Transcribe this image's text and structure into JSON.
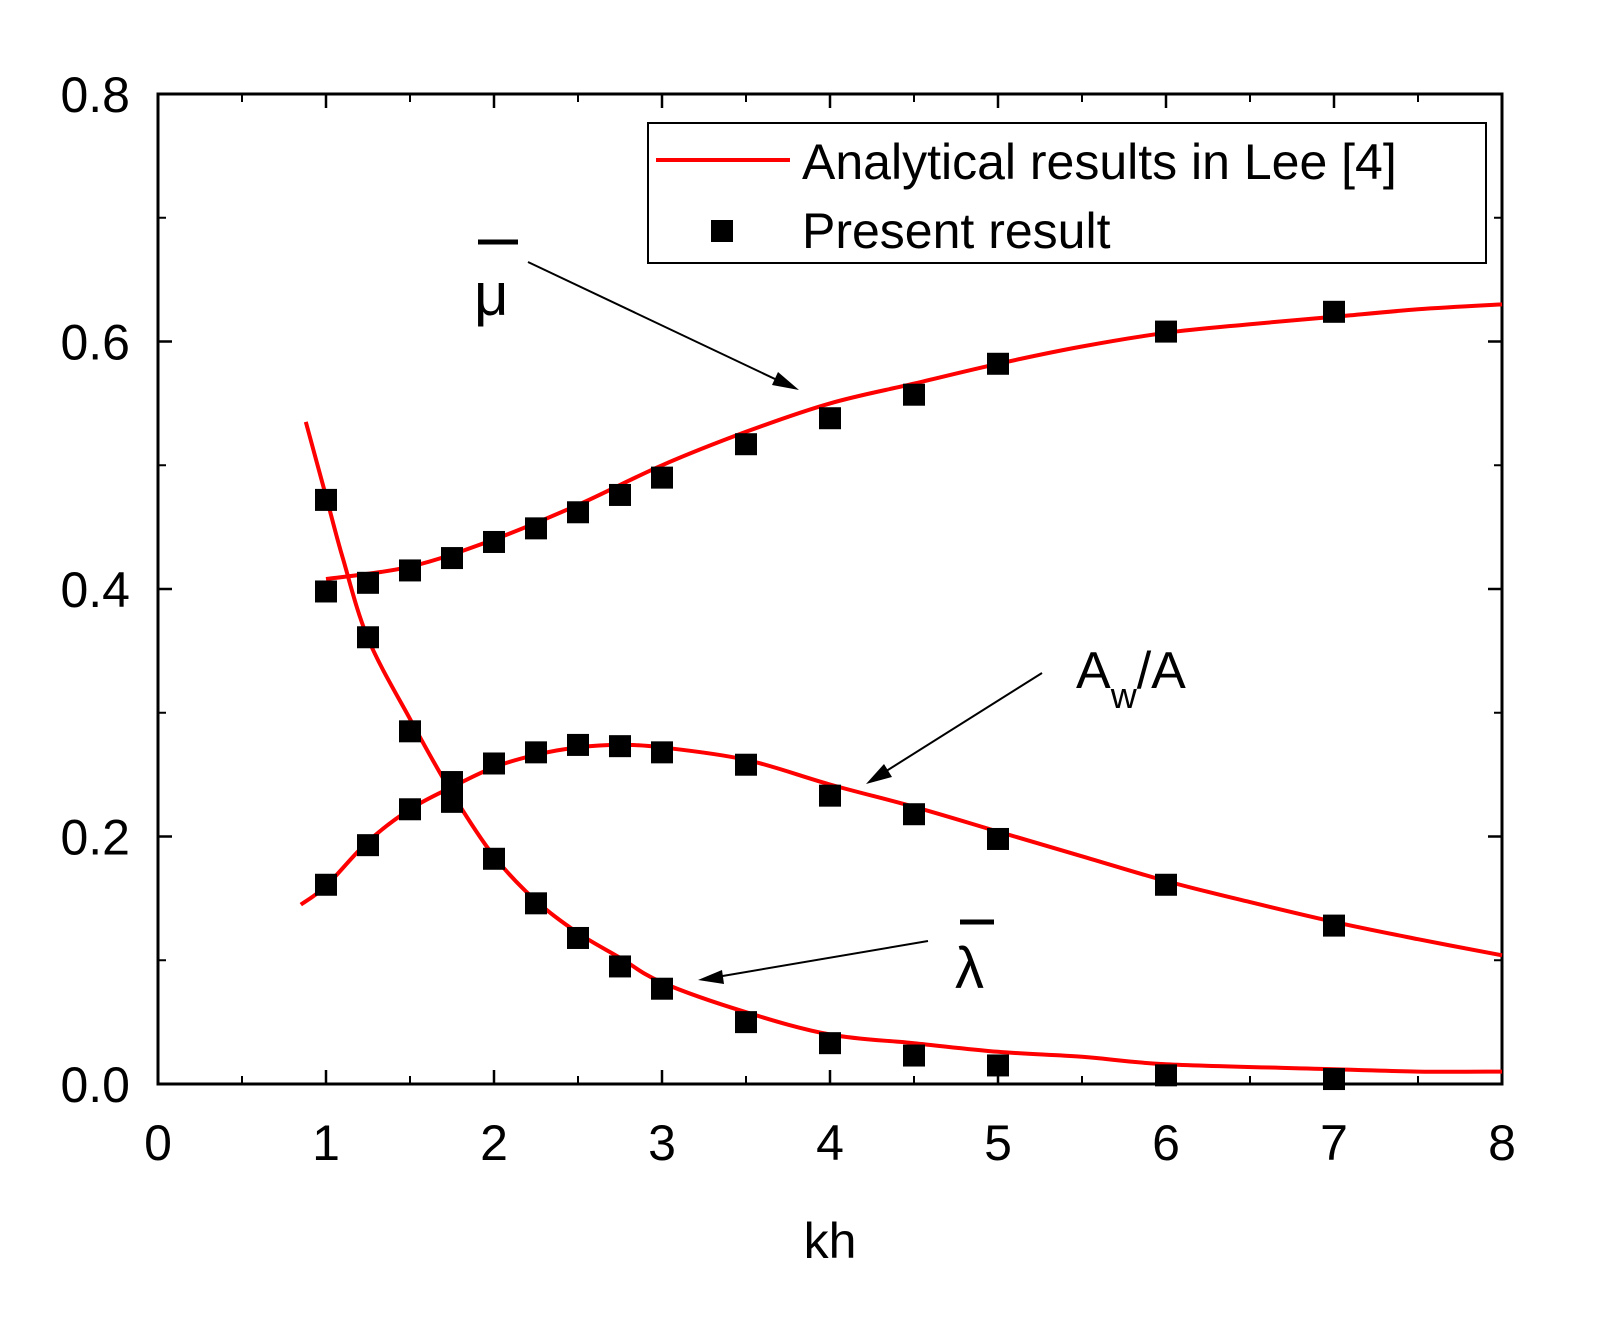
{
  "chart_data": {
    "type": "line",
    "xlabel": "kh",
    "ylabel": "",
    "xlim": [
      0,
      8
    ],
    "ylim": [
      0,
      0.8
    ],
    "x_ticks": [
      "0",
      "1",
      "2",
      "3",
      "4",
      "5",
      "6",
      "7",
      "8"
    ],
    "y_ticks": [
      "0.0",
      "0.2",
      "0.4",
      "0.6",
      "0.8"
    ],
    "legend": {
      "position": "top-right",
      "entries": [
        {
          "label": "Analytical results in Lee [4]",
          "marker": "line",
          "color": "#ff0000"
        },
        {
          "label": "Present result",
          "marker": "square",
          "color": "#000000"
        }
      ]
    },
    "annotations": {
      "mu": {
        "text": "μ",
        "overbar": true
      },
      "aw": {
        "main": "A",
        "sub": "w",
        "rest": "/A"
      },
      "lambda": {
        "text": "λ",
        "overbar": true
      }
    },
    "series": [
      {
        "key": "mu",
        "analytical": {
          "x": [
            1.0,
            1.5,
            2.0,
            2.5,
            3.0,
            3.5,
            4.0,
            4.5,
            5.0,
            5.5,
            6.0,
            6.5,
            7.0,
            7.5,
            8.0
          ],
          "y": [
            0.408,
            0.418,
            0.44,
            0.468,
            0.5,
            0.527,
            0.55,
            0.566,
            0.582,
            0.596,
            0.607,
            0.614,
            0.62,
            0.626,
            0.63
          ]
        },
        "present": {
          "x": [
            1.0,
            1.25,
            1.5,
            1.75,
            2.0,
            2.25,
            2.5,
            2.75,
            3.0,
            3.5,
            4.0,
            4.5,
            5.0,
            6.0,
            7.0
          ],
          "y": [
            0.398,
            0.405,
            0.415,
            0.425,
            0.438,
            0.449,
            0.462,
            0.476,
            0.49,
            0.517,
            0.538,
            0.557,
            0.582,
            0.608,
            0.624
          ]
        }
      },
      {
        "key": "aw",
        "analytical": {
          "x": [
            0.85,
            1.0,
            1.25,
            1.5,
            1.75,
            2.0,
            2.25,
            2.5,
            2.75,
            3.0,
            3.5,
            4.0,
            4.5,
            5.0,
            5.5,
            6.0,
            6.5,
            7.0,
            7.5,
            8.0
          ],
          "y": [
            0.145,
            0.16,
            0.196,
            0.222,
            0.24,
            0.256,
            0.266,
            0.272,
            0.274,
            0.272,
            0.262,
            0.242,
            0.224,
            0.204,
            0.184,
            0.164,
            0.147,
            0.131,
            0.117,
            0.104
          ]
        },
        "present": {
          "x": [
            1.0,
            1.25,
            1.5,
            1.75,
            2.0,
            2.25,
            2.5,
            2.75,
            3.0,
            3.5,
            4.0,
            4.5,
            5.0,
            6.0,
            7.0
          ],
          "y": [
            0.161,
            0.193,
            0.222,
            0.244,
            0.259,
            0.268,
            0.274,
            0.273,
            0.268,
            0.258,
            0.233,
            0.218,
            0.198,
            0.161,
            0.128
          ]
        }
      },
      {
        "key": "lambda",
        "analytical": {
          "x": [
            0.88,
            1.0,
            1.1,
            1.25,
            1.5,
            1.75,
            2.0,
            2.25,
            2.5,
            2.75,
            3.0,
            3.5,
            4.0,
            4.5,
            5.0,
            5.5,
            6.0,
            7.0,
            7.5,
            8.0
          ],
          "y": [
            0.535,
            0.475,
            0.425,
            0.36,
            0.295,
            0.235,
            0.184,
            0.148,
            0.122,
            0.102,
            0.082,
            0.058,
            0.04,
            0.033,
            0.026,
            0.022,
            0.016,
            0.012,
            0.01,
            0.01
          ]
        },
        "present": {
          "x": [
            1.0,
            1.25,
            1.5,
            1.75,
            2.0,
            2.25,
            2.5,
            2.75,
            3.0,
            3.5,
            4.0,
            4.5,
            5.0,
            6.0,
            7.0
          ],
          "y": [
            0.472,
            0.361,
            0.285,
            0.228,
            0.182,
            0.146,
            0.118,
            0.095,
            0.077,
            0.05,
            0.033,
            0.023,
            0.015,
            0.007,
            0.004
          ]
        }
      }
    ]
  }
}
